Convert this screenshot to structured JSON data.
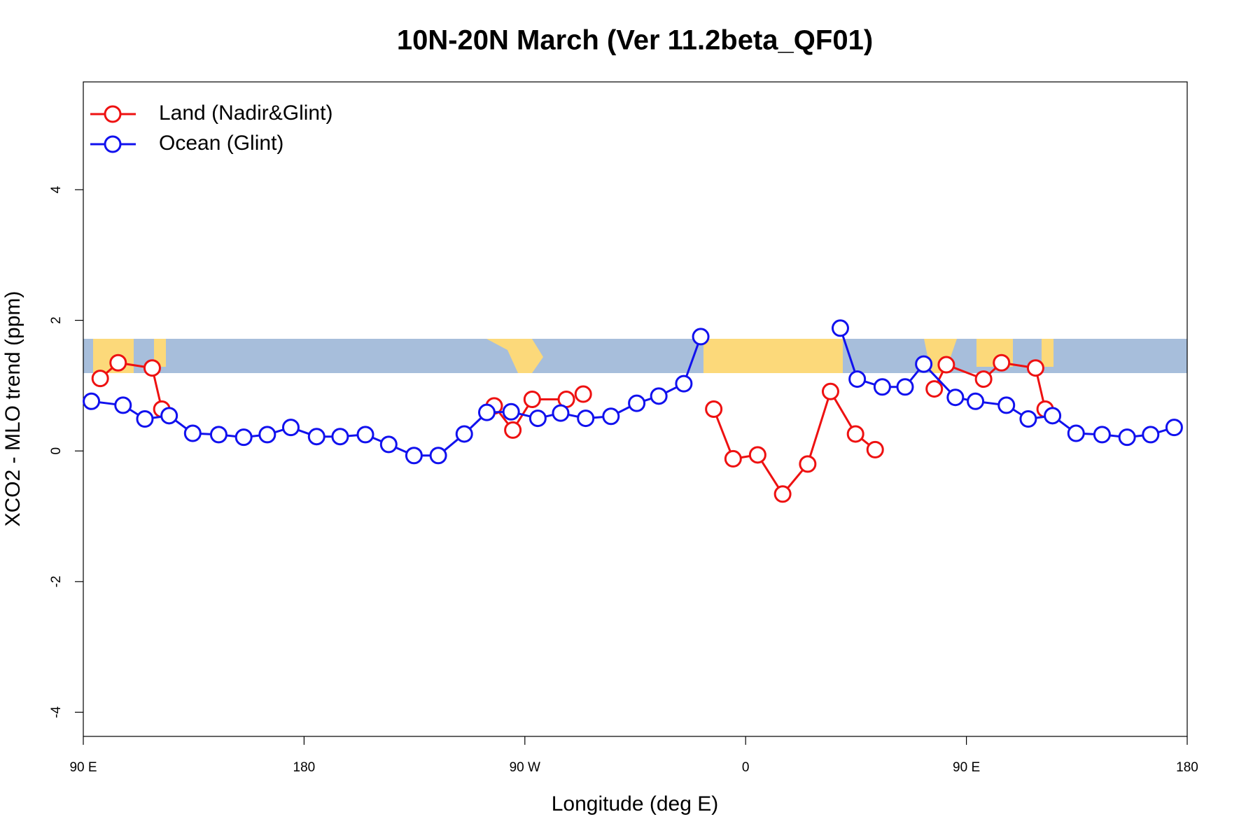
{
  "chart_data": {
    "type": "line",
    "title": "10N-20N March (Ver 11.2beta_QF01)",
    "x_label": "Longitude (deg E)",
    "y_label": "XCO2 - MLO trend (ppm)",
    "xlim": [
      90,
      540
    ],
    "xticks": [
      {
        "value": 90,
        "label": "90 E"
      },
      180,
      {
        "value": 270,
        "label": "90 W"
      },
      {
        "value": 360,
        "label": "0"
      },
      {
        "value": 450,
        "label": "90 E"
      },
      {
        "value": 540,
        "label": "180"
      }
    ],
    "ylim": [
      -4.37,
      5.65
    ],
    "yticks": [
      -4,
      -2,
      0,
      2,
      4
    ],
    "legend": "topleft",
    "series": [
      {
        "name": "Land (Nadir&Glint)",
        "color": "#ee1111",
        "x": [
          96.9,
          104.2,
          118.1,
          122.0,
          null,
          257.5,
          265.1,
          273.0,
          286.9,
          null,
          293.8,
          null,
          347.0,
          354.9,
          364.9,
          375.1,
          385.3,
          394.6,
          404.8,
          412.8,
          null,
          436.9,
          441.8,
          457.0,
          464.3,
          478.2,
          482.1
        ],
        "values": [
          1.11,
          1.35,
          1.27,
          0.64,
          null,
          0.69,
          0.32,
          0.79,
          0.79,
          null,
          0.87,
          null,
          0.64,
          -0.12,
          -0.06,
          -0.66,
          -0.2,
          0.91,
          0.26,
          0.02,
          null,
          0.95,
          1.32,
          1.1,
          1.35,
          1.27,
          0.64
        ]
      },
      {
        "name": "Ocean (Glint)",
        "color": "#1111ee",
        "x": [
          93.3,
          106.2,
          115.1,
          125.0,
          134.6,
          145.2,
          155.4,
          165.0,
          174.6,
          185.1,
          194.7,
          205.0,
          214.5,
          224.8,
          234.7,
          245.3,
          254.5,
          264.4,
          275.3,
          284.6,
          294.8,
          305.1,
          315.6,
          324.6,
          334.8,
          341.7,
          null,
          398.6,
          405.5,
          415.7,
          425.0,
          432.6,
          445.5,
          453.7,
          466.3,
          475.2,
          485.1,
          494.7,
          505.3,
          515.5,
          525.1,
          534.7
        ],
        "values": [
          0.76,
          0.7,
          0.49,
          0.54,
          0.27,
          0.25,
          0.21,
          0.25,
          0.36,
          0.22,
          0.22,
          0.25,
          0.1,
          -0.07,
          -0.07,
          0.26,
          0.59,
          0.6,
          0.5,
          0.58,
          0.5,
          0.53,
          0.73,
          0.84,
          1.03,
          1.75,
          null,
          1.88,
          1.1,
          0.98,
          0.98,
          1.33,
          0.82,
          0.76,
          0.7,
          0.49,
          0.54,
          0.27,
          0.25,
          0.21,
          0.25,
          0.36
        ]
      }
    ]
  }
}
